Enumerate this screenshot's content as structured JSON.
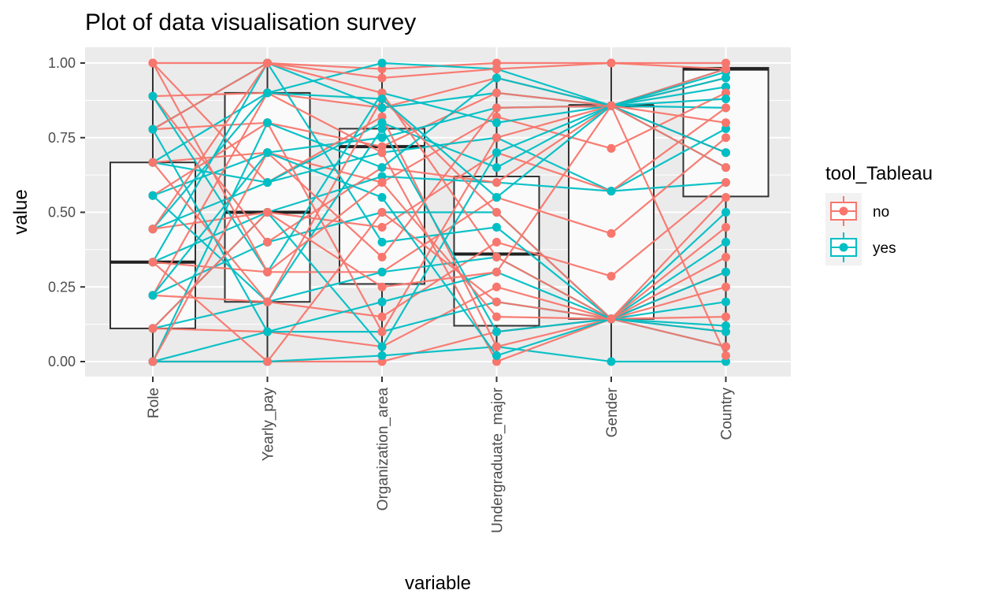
{
  "chart_data": {
    "type": "line",
    "subtype": "parallel-coordinates-with-boxplots",
    "title": "Plot of data visualisation survey",
    "xlabel": "variable",
    "ylabel": "value",
    "categories": [
      "Role",
      "Yearly_pay",
      "Organization_area",
      "Undergraduate_major",
      "Gender",
      "Country"
    ],
    "ylim": [
      -0.05,
      1.0
    ],
    "yticks": [
      0.0,
      0.25,
      0.5,
      0.75,
      1.0
    ],
    "ytick_labels": [
      "0.00",
      "0.25",
      "0.50",
      "0.75",
      "1.00"
    ],
    "grid": true,
    "legend": {
      "title": "tool_Tableau",
      "placement": "right",
      "entries": [
        {
          "label": "no",
          "color": "#F8766D"
        },
        {
          "label": "yes",
          "color": "#00BFC4"
        }
      ]
    },
    "colors": {
      "no": "#F8766D",
      "yes": "#00BFC4",
      "panel": "#EBEBEB",
      "grid": "#FFFFFF"
    },
    "boxplots": [
      {
        "category": "Role",
        "q1": 0.111,
        "median": 0.333,
        "q3": 0.667,
        "min": 0.0,
        "max": 1.0
      },
      {
        "category": "Yearly_pay",
        "q1": 0.2,
        "median": 0.5,
        "q3": 0.9,
        "min": 0.0,
        "max": 1.0
      },
      {
        "category": "Organization_area",
        "q1": 0.26,
        "median": 0.72,
        "q3": 0.78,
        "min": 0.0,
        "max": 1.0
      },
      {
        "category": "Undergraduate_major",
        "q1": 0.12,
        "median": 0.36,
        "q3": 0.62,
        "min": 0.0,
        "max": 1.0
      },
      {
        "category": "Gender",
        "q1": 0.143,
        "median": 0.857,
        "q3": 0.857,
        "min": 0.0,
        "max": 1.0
      },
      {
        "category": "Country",
        "q1": 0.553,
        "median": 0.98,
        "q3": 0.984,
        "min": 0.0,
        "max": 1.0
      }
    ],
    "series": [
      {
        "name": "no",
        "lines": [
          [
            1.0,
            1.0,
            0.98,
            1.0,
            1.0,
            1.0
          ],
          [
            0.889,
            0.9,
            0.85,
            0.95,
            0.857,
            0.98
          ],
          [
            0.778,
            0.8,
            0.72,
            0.9,
            0.857,
            0.95
          ],
          [
            0.667,
            0.7,
            0.6,
            0.82,
            0.714,
            0.9
          ],
          [
            0.444,
            0.5,
            0.45,
            0.7,
            0.571,
            0.85
          ],
          [
            0.333,
            0.3,
            0.3,
            0.55,
            0.429,
            0.75
          ],
          [
            0.222,
            0.2,
            0.15,
            0.4,
            0.286,
            0.6
          ],
          [
            0.111,
            0.1,
            0.05,
            0.25,
            0.143,
            0.45
          ],
          [
            0.0,
            0.0,
            0.0,
            0.1,
            0.143,
            0.3
          ],
          [
            1.0,
            0.6,
            0.82,
            0.05,
            0.143,
            0.1
          ],
          [
            0.889,
            0.4,
            0.65,
            0.6,
            0.857,
            0.02
          ],
          [
            0.778,
            1.0,
            0.9,
            0.35,
            0.143,
            0.55
          ],
          [
            0.556,
            0.8,
            0.1,
            0.75,
            0.857,
            0.7
          ],
          [
            0.333,
            0.0,
            0.5,
            0.2,
            0.143,
            0.25
          ],
          [
            0.222,
            0.9,
            0.7,
            0.0,
            0.143,
            0.15
          ],
          [
            0.0,
            0.7,
            0.35,
            0.85,
            0.857,
            0.8
          ],
          [
            0.667,
            0.2,
            0.88,
            0.5,
            0.143,
            0.05
          ],
          [
            0.444,
            1.0,
            0.95,
            0.98,
            1.0,
            0.98
          ],
          [
            0.111,
            0.5,
            0.25,
            0.3,
            0.857,
            0.65
          ],
          [
            1.0,
            0.3,
            0.6,
            0.15,
            0.143,
            0.35
          ]
        ]
      },
      {
        "name": "yes",
        "lines": [
          [
            0.667,
            0.9,
            1.0,
            0.98,
            0.857,
            0.98
          ],
          [
            0.778,
            1.0,
            0.85,
            0.9,
            0.857,
            0.92
          ],
          [
            0.556,
            0.7,
            0.75,
            0.85,
            0.857,
            0.85
          ],
          [
            0.444,
            0.6,
            0.7,
            0.75,
            0.571,
            0.78
          ],
          [
            0.333,
            0.5,
            0.62,
            0.6,
            0.571,
            0.6
          ],
          [
            0.222,
            0.4,
            0.5,
            0.5,
            0.143,
            0.5
          ],
          [
            0.111,
            0.2,
            0.3,
            0.35,
            0.143,
            0.4
          ],
          [
            0.0,
            0.1,
            0.1,
            0.2,
            0.143,
            0.2
          ],
          [
            0.0,
            0.0,
            0.02,
            0.05,
            0.0,
            0.0
          ],
          [
            0.667,
            0.6,
            0.8,
            0.65,
            0.857,
            0.95
          ],
          [
            0.889,
            0.3,
            0.9,
            0.8,
            0.857,
            0.88
          ],
          [
            0.333,
            1.0,
            0.4,
            0.45,
            0.143,
            0.1
          ],
          [
            0.111,
            0.5,
            0.05,
            0.7,
            0.857,
            0.7
          ],
          [
            0.556,
            0.2,
            0.78,
            0.1,
            0.143,
            0.05
          ],
          [
            0.0,
            0.8,
            0.65,
            0.95,
            0.857,
            0.97
          ],
          [
            0.778,
            0.1,
            0.2,
            0.3,
            0.143,
            0.3
          ],
          [
            0.444,
            0.9,
            0.88,
            0.55,
            0.857,
            0.65
          ],
          [
            0.222,
            0.7,
            0.55,
            0.02,
            0.143,
            0.12
          ]
        ]
      }
    ]
  }
}
